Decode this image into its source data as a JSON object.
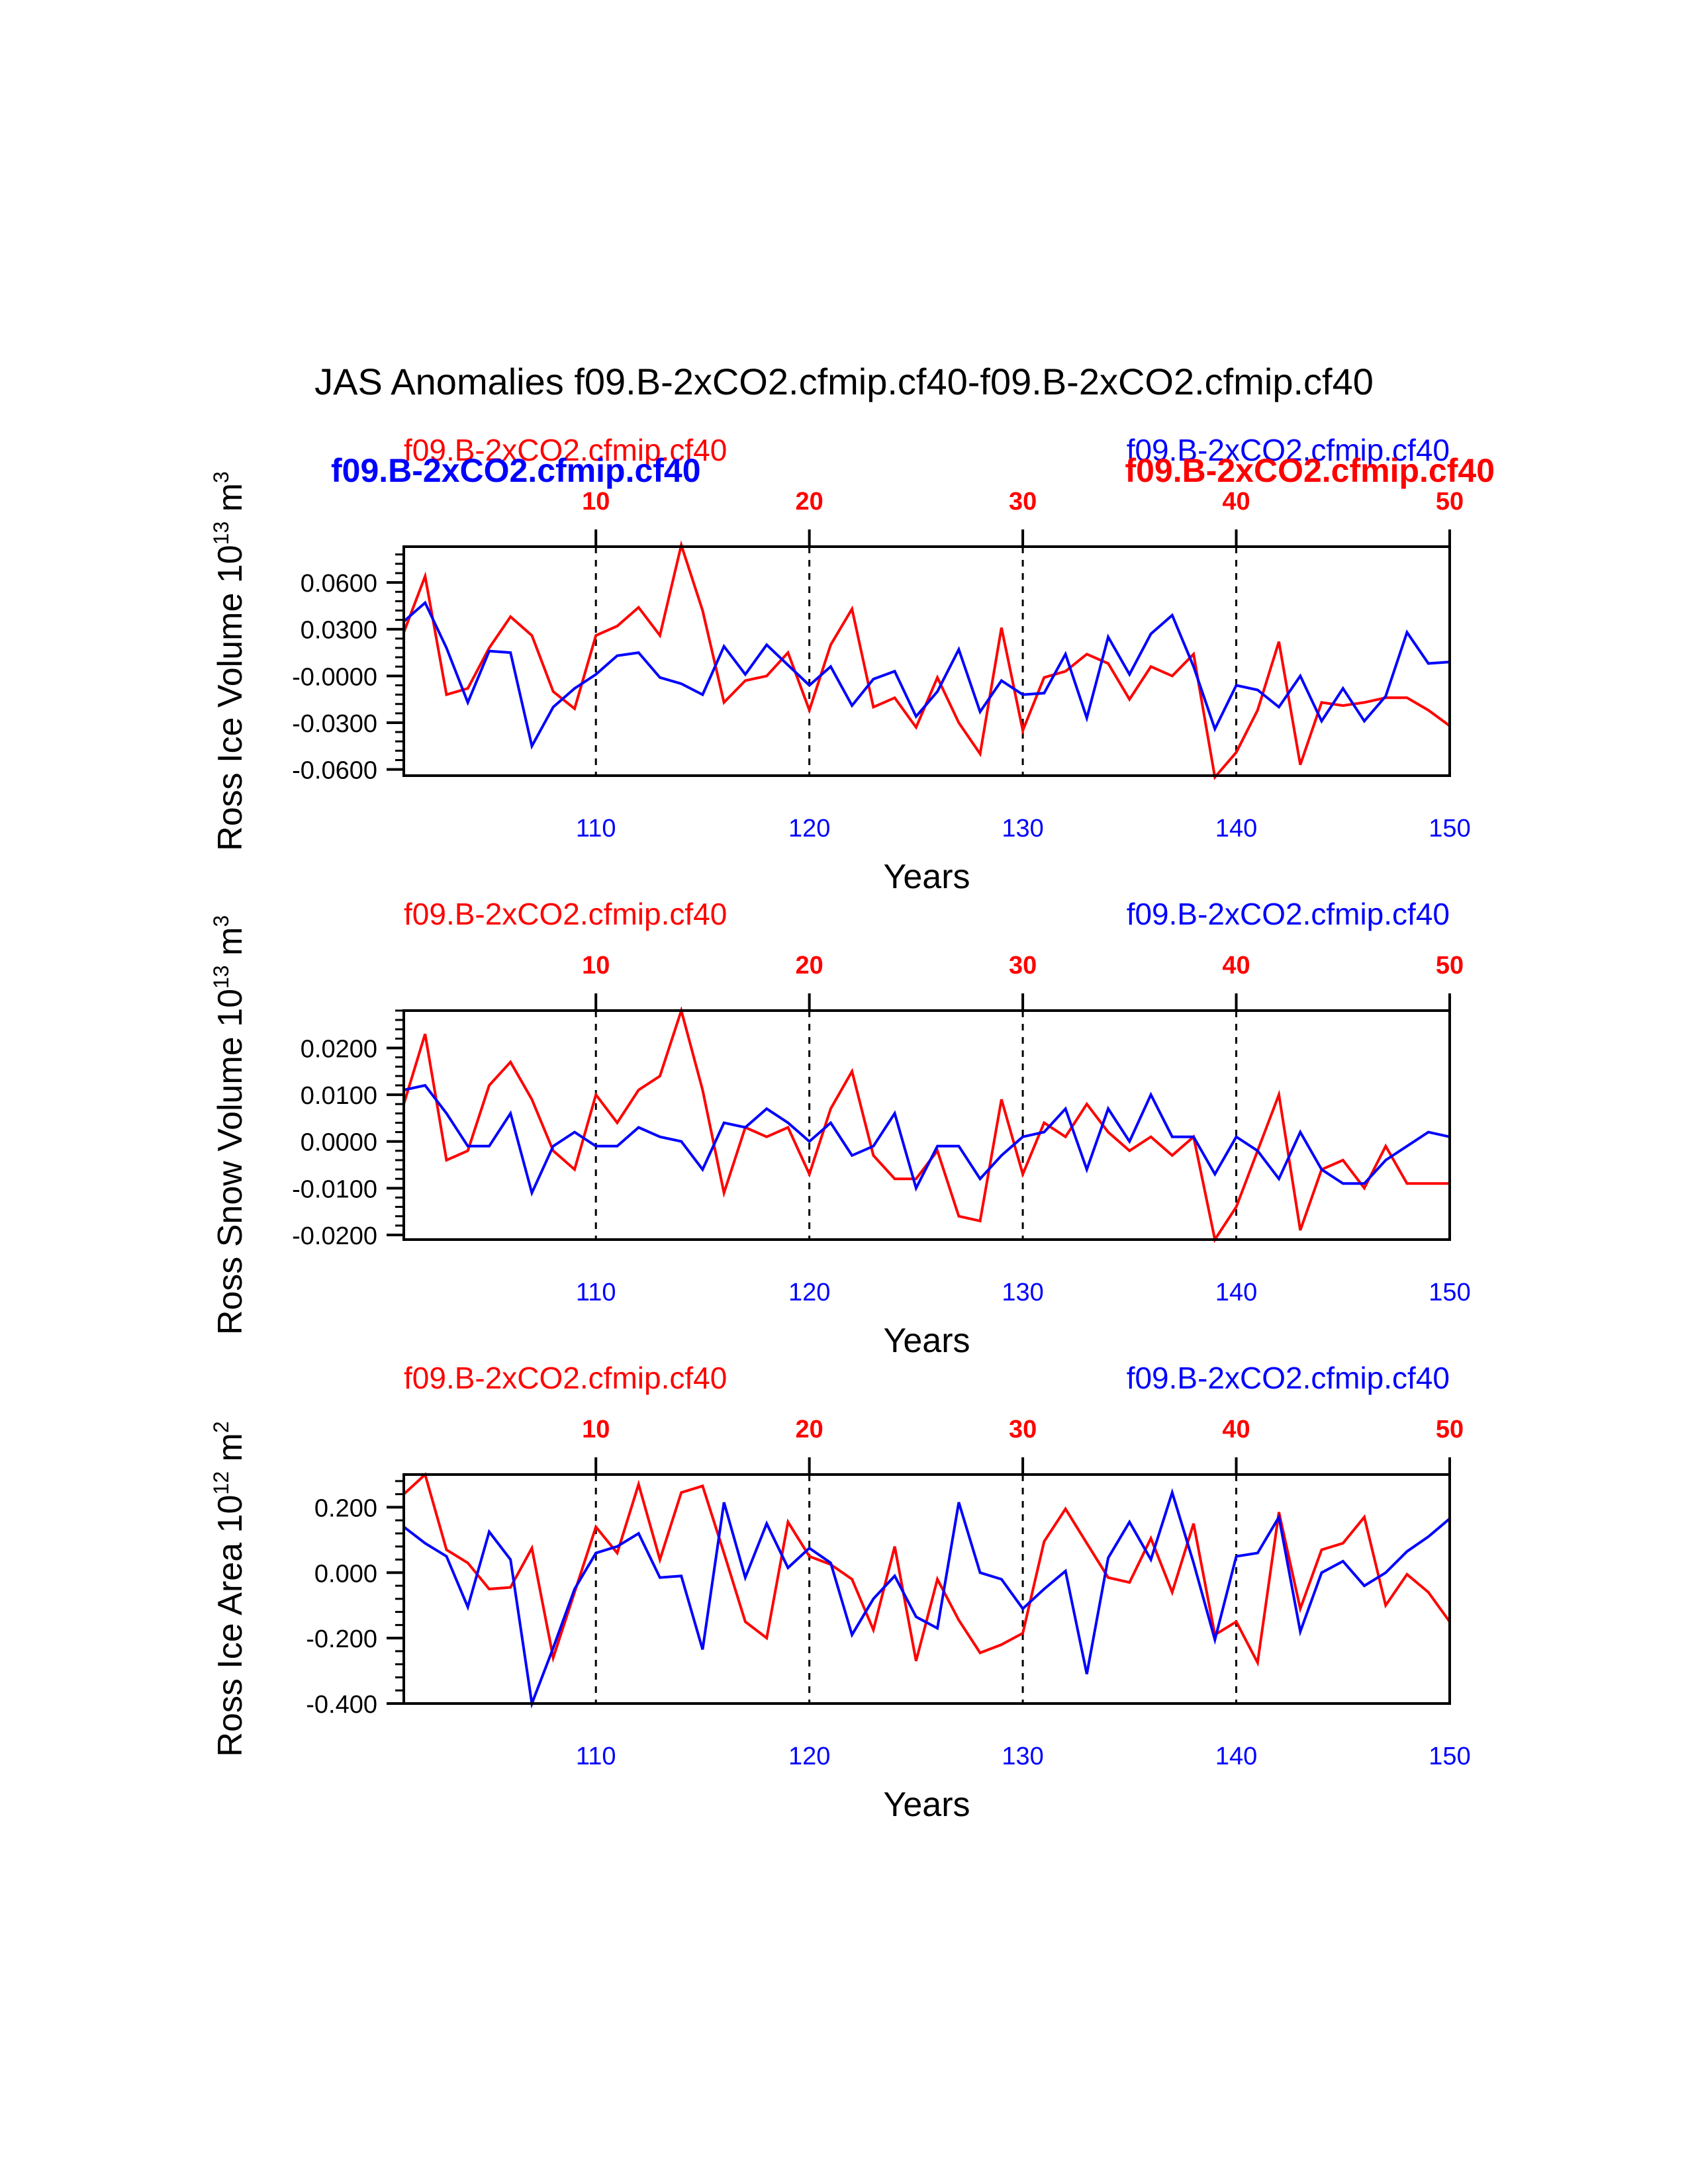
{
  "title": "JAS Anomalies f09.B-2xCO2.cfmip.cf40-f09.B-2xCO2.cfmip.cf40",
  "colors": {
    "red": "#ff0000",
    "blue": "#0000ff",
    "black": "#000000"
  },
  "chart_data": [
    {
      "type": "line",
      "ylabel": "Ross Ice Volume 10",
      "yexp": "13",
      "yunit": "m",
      "yunitexp": "3",
      "xlabel": "Years",
      "ylim": [
        -0.064,
        0.083
      ],
      "yticks": [
        -0.06,
        -0.03,
        0.0,
        0.03,
        0.06
      ],
      "ytick_labels": [
        "-0.0600",
        "-0.0300",
        "-0.0000",
        "0.0300",
        "0.0600"
      ],
      "yminor_step": 0.006,
      "top_axis": {
        "range": [
          1,
          50
        ],
        "ticks": [
          10,
          20,
          30,
          40,
          50
        ],
        "labels": [
          "10",
          "20",
          "30",
          "40",
          "50"
        ]
      },
      "bottom_axis": {
        "range": [
          101,
          150
        ],
        "ticks": [
          110,
          120,
          130,
          140,
          150
        ],
        "labels": [
          "110",
          "120",
          "130",
          "140",
          "150"
        ]
      },
      "legend": {
        "left_red": "f09.B-2xCO2.cfmip.cf40",
        "left_blue_bold": "f09.B-2xCO2.cfmip.cf40",
        "right_blue": "f09.B-2xCO2.cfmip.cf40",
        "right_red_bold": "f09.B-2xCO2.cfmip.cf40"
      },
      "series": [
        {
          "name": "f09.B-2xCO2.cfmip.cf40",
          "axis": "top",
          "color": "red",
          "values": [
            0.028,
            0.064,
            -0.012,
            -0.008,
            0.018,
            0.038,
            0.026,
            -0.01,
            -0.021,
            0.026,
            0.032,
            0.044,
            0.026,
            0.084,
            0.042,
            -0.017,
            -0.003,
            0.0,
            0.015,
            -0.022,
            0.02,
            0.043,
            -0.02,
            -0.014,
            -0.033,
            -0.001,
            -0.03,
            -0.05,
            0.031,
            -0.035,
            -0.001,
            0.003,
            0.014,
            0.008,
            -0.015,
            0.006,
            0.0,
            0.014,
            -0.065,
            -0.049,
            -0.022,
            0.022,
            -0.057,
            -0.017,
            -0.019,
            -0.017,
            -0.014,
            -0.014,
            -0.022,
            -0.032
          ]
        },
        {
          "name": "f09.B-2xCO2.cfmip.cf40",
          "axis": "bottom",
          "color": "blue",
          "values": [
            0.035,
            0.047,
            0.018,
            -0.017,
            0.016,
            0.015,
            -0.045,
            -0.02,
            -0.008,
            0.001,
            0.013,
            0.015,
            -0.001,
            -0.005,
            -0.012,
            0.019,
            0.001,
            0.02,
            0.007,
            -0.006,
            0.006,
            -0.019,
            -0.002,
            0.003,
            -0.026,
            -0.01,
            0.017,
            -0.023,
            -0.003,
            -0.012,
            -0.011,
            0.014,
            -0.027,
            0.025,
            0.001,
            0.027,
            0.039,
            0.006,
            -0.034,
            -0.006,
            -0.009,
            -0.02,
            0.0,
            -0.029,
            -0.008,
            -0.029,
            -0.013,
            0.028,
            0.008,
            0.009
          ]
        }
      ]
    },
    {
      "type": "line",
      "ylabel": "Ross Snow Volume 10",
      "yexp": "13",
      "yunit": "m",
      "yunitexp": "3",
      "xlabel": "Years",
      "ylim": [
        -0.021,
        0.028
      ],
      "yticks": [
        -0.02,
        -0.01,
        0.0,
        0.01,
        0.02
      ],
      "ytick_labels": [
        "-0.0200",
        "-0.0100",
        "0.0000",
        "0.0100",
        "0.0200"
      ],
      "yminor_step": 0.002,
      "top_axis": {
        "range": [
          1,
          50
        ],
        "ticks": [
          10,
          20,
          30,
          40,
          50
        ],
        "labels": [
          "10",
          "20",
          "30",
          "40",
          "50"
        ]
      },
      "bottom_axis": {
        "range": [
          101,
          150
        ],
        "ticks": [
          110,
          120,
          130,
          140,
          150
        ],
        "labels": [
          "110",
          "120",
          "130",
          "140",
          "150"
        ]
      },
      "legend": {
        "left_red": "f09.B-2xCO2.cfmip.cf40",
        "right_blue": "f09.B-2xCO2.cfmip.cf40"
      },
      "series": [
        {
          "name": "f09.B-2xCO2.cfmip.cf40",
          "axis": "top",
          "color": "red",
          "values": [
            0.008,
            0.023,
            -0.004,
            -0.002,
            0.012,
            0.017,
            0.009,
            -0.002,
            -0.006,
            0.01,
            0.004,
            0.011,
            0.014,
            0.028,
            0.011,
            -0.011,
            0.003,
            0.001,
            0.003,
            -0.007,
            0.007,
            0.015,
            -0.003,
            -0.008,
            -0.008,
            -0.002,
            -0.016,
            -0.017,
            0.009,
            -0.007,
            0.004,
            0.001,
            0.008,
            0.002,
            -0.002,
            0.001,
            -0.003,
            0.001,
            -0.021,
            -0.014,
            -0.002,
            0.01,
            -0.019,
            -0.006,
            -0.004,
            -0.01,
            -0.001,
            -0.009,
            -0.009,
            -0.009
          ]
        },
        {
          "name": "f09.B-2xCO2.cfmip.cf40",
          "axis": "bottom",
          "color": "blue",
          "values": [
            0.011,
            0.012,
            0.006,
            -0.001,
            -0.001,
            0.006,
            -0.011,
            -0.001,
            0.002,
            -0.001,
            -0.001,
            0.003,
            0.001,
            0.0,
            -0.006,
            0.004,
            0.003,
            0.007,
            0.004,
            0.0,
            0.004,
            -0.003,
            -0.001,
            0.006,
            -0.01,
            -0.001,
            -0.001,
            -0.008,
            -0.003,
            0.001,
            0.002,
            0.007,
            -0.006,
            0.007,
            0.0,
            0.01,
            0.001,
            0.001,
            -0.007,
            0.001,
            -0.002,
            -0.008,
            0.002,
            -0.006,
            -0.009,
            -0.009,
            -0.004,
            -0.001,
            0.002,
            0.001
          ]
        }
      ]
    },
    {
      "type": "line",
      "ylabel": "Ross Ice Area 10",
      "yexp": "12",
      "yunit": "m",
      "yunitexp": "2",
      "xlabel": "Years",
      "ylim": [
        -0.4,
        0.3
      ],
      "yticks": [
        -0.4,
        -0.2,
        0.0,
        0.2
      ],
      "ytick_labels": [
        "-0.400",
        "-0.200",
        "0.000",
        "0.200"
      ],
      "yminor_step": 0.04,
      "top_axis": {
        "range": [
          1,
          50
        ],
        "ticks": [
          10,
          20,
          30,
          40,
          50
        ],
        "labels": [
          "10",
          "20",
          "30",
          "40",
          "50"
        ]
      },
      "bottom_axis": {
        "range": [
          101,
          150
        ],
        "ticks": [
          110,
          120,
          130,
          140,
          150
        ],
        "labels": [
          "110",
          "120",
          "130",
          "140",
          "150"
        ]
      },
      "legend": {
        "left_red": "f09.B-2xCO2.cfmip.cf40",
        "right_blue": "f09.B-2xCO2.cfmip.cf40"
      },
      "series": [
        {
          "name": "f09.B-2xCO2.cfmip.cf40",
          "axis": "top",
          "color": "red",
          "values": [
            0.24,
            0.3,
            0.07,
            0.03,
            -0.05,
            -0.045,
            0.075,
            -0.26,
            -0.06,
            0.14,
            0.06,
            0.27,
            0.04,
            0.245,
            0.265,
            0.06,
            -0.15,
            -0.2,
            0.155,
            0.05,
            0.025,
            -0.02,
            -0.175,
            0.08,
            -0.27,
            -0.02,
            -0.145,
            -0.245,
            -0.22,
            -0.185,
            0.095,
            0.195,
            0.09,
            -0.015,
            -0.03,
            0.105,
            -0.06,
            0.15,
            -0.19,
            -0.15,
            -0.275,
            0.185,
            -0.11,
            0.07,
            0.09,
            0.17,
            -0.1,
            -0.005,
            -0.06,
            -0.15
          ]
        },
        {
          "name": "f09.B-2xCO2.cfmip.cf40",
          "axis": "bottom",
          "color": "blue",
          "values": [
            0.14,
            0.09,
            0.05,
            -0.105,
            0.125,
            0.04,
            -0.4,
            -0.23,
            -0.05,
            0.06,
            0.08,
            0.12,
            -0.015,
            -0.01,
            -0.235,
            0.215,
            -0.015,
            0.15,
            0.015,
            0.075,
            0.03,
            -0.19,
            -0.08,
            -0.01,
            -0.135,
            -0.17,
            0.215,
            0.0,
            -0.02,
            -0.11,
            -0.05,
            0.005,
            -0.31,
            0.045,
            0.155,
            0.04,
            0.245,
            0.03,
            -0.205,
            0.05,
            0.06,
            0.17,
            -0.18,
            0.0,
            0.035,
            -0.04,
            0.0,
            0.065,
            0.11,
            0.165
          ]
        }
      ]
    }
  ]
}
